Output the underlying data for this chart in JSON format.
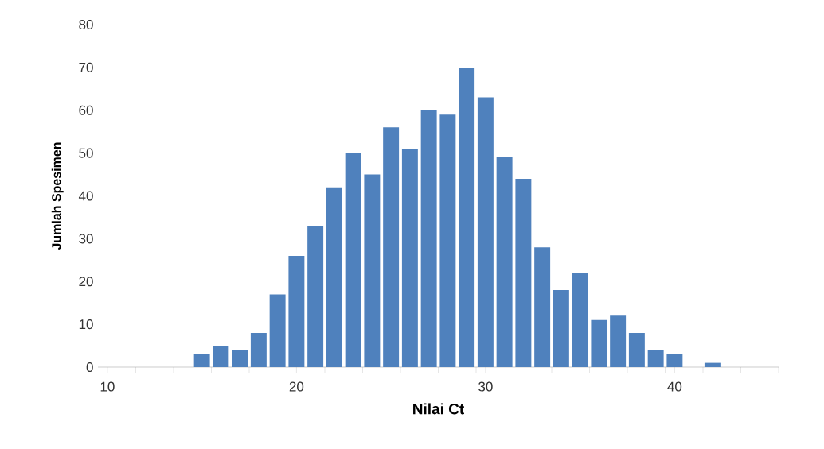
{
  "chart_data": {
    "type": "bar",
    "xlabel": "Nilai Ct",
    "ylabel": "Jumlah Spesimen",
    "color": "#4f81bd",
    "x": [
      10,
      11,
      12,
      13,
      14,
      15,
      16,
      17,
      18,
      19,
      20,
      21,
      22,
      23,
      24,
      25,
      26,
      27,
      28,
      29,
      30,
      31,
      32,
      33,
      34,
      35,
      36,
      37,
      38,
      39,
      40,
      41,
      42,
      43,
      44,
      45
    ],
    "values": [
      0,
      0,
      0,
      0,
      0,
      3,
      5,
      4,
      8,
      17,
      26,
      33,
      42,
      50,
      45,
      56,
      51,
      60,
      59,
      70,
      63,
      49,
      44,
      28,
      18,
      22,
      11,
      12,
      8,
      4,
      3,
      0,
      1,
      0,
      0,
      0
    ],
    "xlim": [
      9.5,
      45.5
    ],
    "xticks": [
      10,
      {
        "value": 11.5,
        "label": null
      },
      {
        "value": 13.5,
        "label": null
      },
      {
        "value": 15.5,
        "label": null
      },
      {
        "value": 17.5,
        "label": null
      },
      {
        "value": 19.5,
        "label": null
      },
      20,
      {
        "value": 21.5,
        "label": null
      },
      {
        "value": 23.5,
        "label": null
      },
      {
        "value": 25.5,
        "label": null
      },
      {
        "value": 27.5,
        "label": null
      },
      {
        "value": 29.5,
        "label": null
      },
      30,
      {
        "value": 31.5,
        "label": null
      },
      {
        "value": 33.5,
        "label": null
      },
      {
        "value": 35.5,
        "label": null
      },
      {
        "value": 37.5,
        "label": null
      },
      {
        "value": 39.5,
        "label": null
      },
      40,
      {
        "value": 41.5,
        "label": null
      },
      {
        "value": 43.5,
        "label": null
      },
      {
        "value": 45.5,
        "label": null
      }
    ],
    "ylim": [
      0,
      80
    ],
    "yticks": [
      0,
      10,
      20,
      30,
      40,
      50,
      60,
      70,
      80
    ],
    "grid": false
  }
}
